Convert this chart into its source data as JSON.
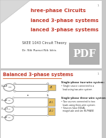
{
  "slide1": {
    "bg_color": "#ffffff",
    "fold_color": "#d8d8d8",
    "title_lines": [
      "hree-phase Circuits",
      "lanced 3-phase systems",
      "lanced 3-phase systems"
    ],
    "title_color": "#c0392b",
    "subtitle1": "SKEE 1043 Circuit Theory",
    "subtitle2": "Dr. Nik Rumzi Nik Idris",
    "subtitle_color": "#444444",
    "pdf_label": "PDF",
    "page_num": "1"
  },
  "slide2": {
    "bg_color": "#ffffff",
    "title": "Balanced 3-phase systems",
    "title_color": "#c0392b",
    "circuit_color": "#999999",
    "box_color": "#e8c060",
    "text_color": "#333333",
    "page_num": "1"
  },
  "fig_bg": "#c8c8c8",
  "figsize": [
    1.49,
    1.98
  ],
  "dpi": 100
}
